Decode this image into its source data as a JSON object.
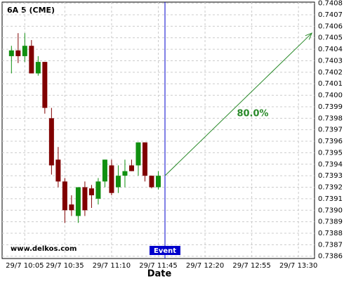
{
  "chart_data": {
    "type": "candlestick",
    "title": "6A 5 (CME)",
    "watermark": "www.delkos.com",
    "x_label": "Date",
    "x": [
      "29/7 09:55",
      "29/7 10:00",
      "29/7 10:05",
      "29/7 10:10",
      "29/7 10:15",
      "29/7 10:20",
      "29/7 10:25",
      "29/7 10:30",
      "29/7 10:35",
      "29/7 10:40",
      "29/7 10:45",
      "29/7 10:50",
      "29/7 10:55",
      "29/7 11:00",
      "29/7 11:05",
      "29/7 11:10",
      "29/7 11:15",
      "29/7 11:20",
      "29/7 11:25",
      "29/7 11:30",
      "29/7 11:35",
      "29/7 11:40",
      "29/7 11:45"
    ],
    "open": [
      0.74034,
      0.74039,
      0.74034,
      0.74043,
      0.74019,
      0.74029,
      0.7398,
      0.73944,
      0.73925,
      0.73905,
      0.73895,
      0.7392,
      0.73919,
      0.7391,
      0.73925,
      0.73939,
      0.7392,
      0.7393,
      0.73939,
      0.73939,
      0.73959,
      0.7393,
      0.7392
    ],
    "high": [
      0.74043,
      0.74054,
      0.74054,
      0.74048,
      0.74034,
      0.74029,
      0.73989,
      0.73955,
      0.73928,
      0.73913,
      0.7392,
      0.73925,
      0.73922,
      0.73928,
      0.73944,
      0.73944,
      0.73939,
      0.73944,
      0.73944,
      0.73959,
      0.73959,
      0.7393,
      0.73934
    ],
    "low": [
      0.74019,
      0.74028,
      0.74029,
      0.74019,
      0.74017,
      0.73984,
      0.73931,
      0.7392,
      0.73889,
      0.73895,
      0.73889,
      0.73895,
      0.73902,
      0.73905,
      0.7392,
      0.73913,
      0.73915,
      0.7392,
      0.73934,
      0.7393,
      0.73925,
      0.73919,
      0.73918
    ],
    "close": [
      0.74039,
      0.74034,
      0.74043,
      0.74019,
      0.74029,
      0.73989,
      0.73939,
      0.73925,
      0.739,
      0.739,
      0.7392,
      0.739,
      0.73913,
      0.73925,
      0.73944,
      0.73915,
      0.7393,
      0.73934,
      0.73934,
      0.73959,
      0.7393,
      0.7392,
      0.7393
    ],
    "up_color": "#109010",
    "down_color": "#800000",
    "event": {
      "x": "29/7 11:50",
      "label": "Event",
      "color": "#0000cc"
    },
    "arrow": {
      "x": [
        "29/7 11:50",
        "29/7 13:40"
      ],
      "y": [
        0.7393,
        0.74054
      ],
      "label": "80.0%",
      "color": "#2a8a2a"
    },
    "xlim": [
      "29/7 09:48",
      "29/7 13:42"
    ],
    "xticks": [
      "29/7 10:05",
      "29/7 10:35",
      "29/7 11:10",
      "29/7 11:45",
      "29/7 12:20",
      "29/7 12:55",
      "29/7 13:30"
    ],
    "ylim": [
      0.73858,
      0.74081
    ],
    "yticks": [
      0.7386,
      0.7387,
      0.7388,
      0.7389,
      {
        "value": 0.739,
        "label": "0.7390"
      },
      0.7391,
      0.7392,
      0.7393,
      0.7394,
      0.7395,
      0.7396,
      0.7397,
      0.7398,
      0.7399,
      {
        "value": 0.74,
        "label": "0.7400"
      },
      0.7401,
      0.7402,
      0.7403,
      0.7404,
      0.7405,
      0.7406,
      0.7407,
      0.7408
    ],
    "grid": true
  }
}
